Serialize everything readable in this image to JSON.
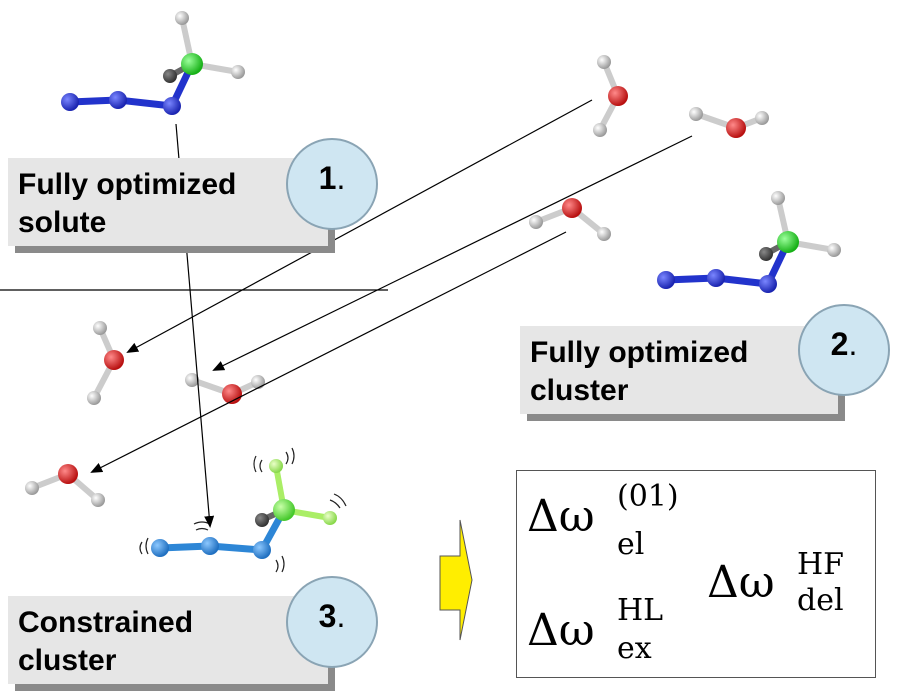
{
  "labels": {
    "step1": {
      "text_line1": "Fully optimized",
      "text_line2": "solute",
      "number": "1",
      "dot": "."
    },
    "step2": {
      "text_line1": "Fully optimized",
      "text_line2": "cluster",
      "number": "2",
      "dot": "."
    },
    "step3": {
      "text_line1": "Constrained",
      "text_line2": "cluster",
      "number": "3",
      "dot": "."
    }
  },
  "formulas": {
    "electrostatic": {
      "symbol": "Δω",
      "superscript": "(01)",
      "subscript": "el"
    },
    "delocalization": {
      "symbol": "Δω",
      "superscript": "HF",
      "subscript": "del"
    },
    "exchange": {
      "symbol": "Δω",
      "superscript": "HL",
      "subscript": "ex"
    }
  },
  "colors": {
    "nitrogen": "#2233cc",
    "nitrogen_constrained": "#2d86d6",
    "carbon": "#22cc22",
    "carbon_constrained": "#66dd44",
    "hydrogen": "#d9d9d9",
    "hydrogen_constrained": "#aaee66",
    "oxygen": "#dd2222",
    "arrow": "#ffee00",
    "label_box": "#e6e6e6",
    "badge": "#cfe6f2"
  },
  "icons": {
    "molecule_solute": "methyl-azide-icon",
    "molecule_water": "water-molecule-icon",
    "transfer_arrow": "right-arrow-icon"
  }
}
